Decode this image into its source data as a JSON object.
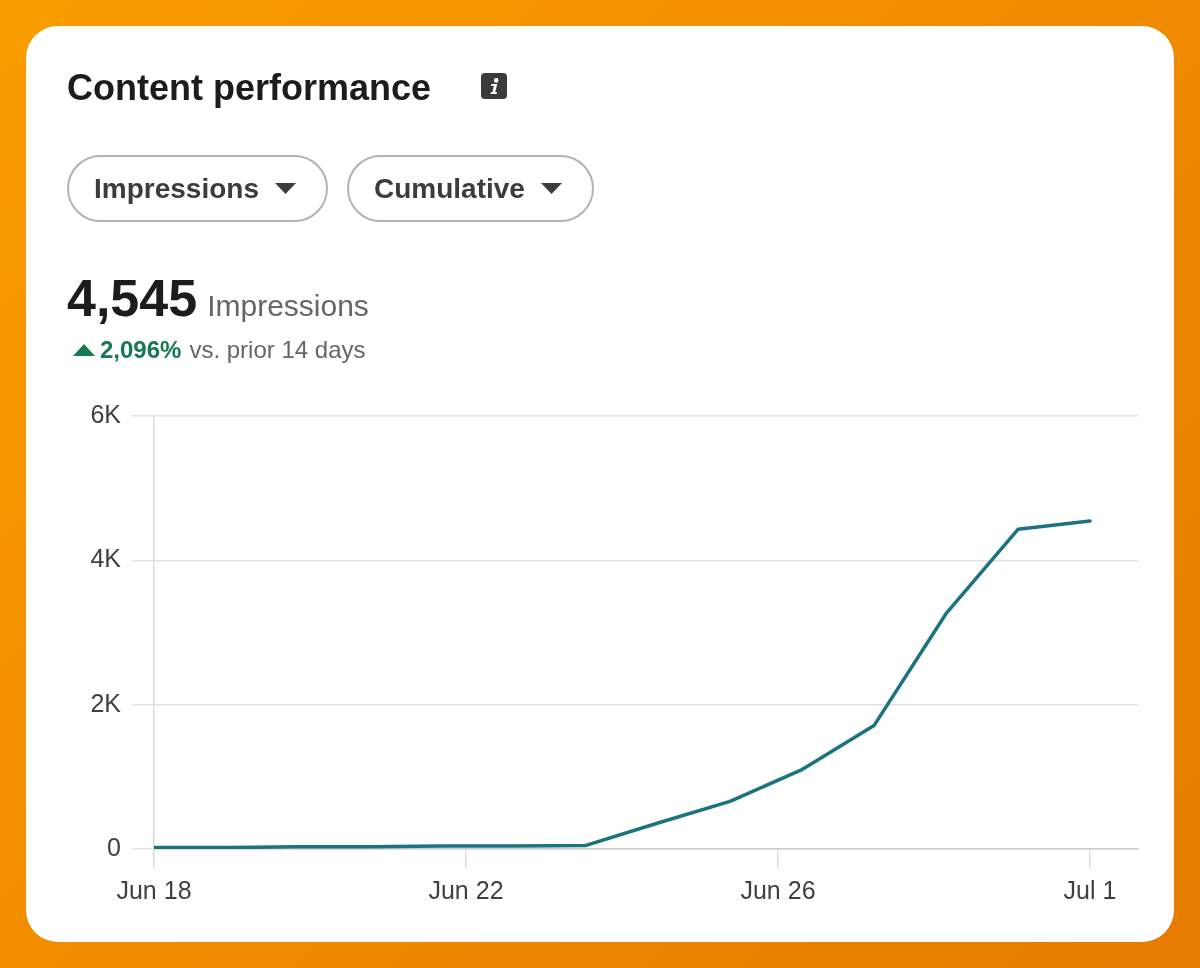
{
  "chart_data": {
    "type": "line",
    "title": "Content performance",
    "annotations": [
      "Impressions",
      "Cumulative",
      "4,545",
      "Impressions",
      "2,096%",
      "vs. prior 14 days"
    ],
    "x": [
      "--06-18",
      "--06-19",
      "--06-20",
      "--06-21",
      "--06-22",
      "--06-23",
      "--06-24",
      "--06-25",
      "--06-26",
      "--06-27",
      "--06-28",
      "--06-29",
      "--06-30",
      "--07-01"
    ],
    "values": [
      20,
      20,
      30,
      30,
      40,
      40,
      50,
      360,
      660,
      1100,
      1710,
      3260,
      4430,
      4545
    ],
    "color": "#1b7380",
    "xlim": [
      "--06-18",
      "--07-01T16:00"
    ],
    "xticks": [
      {
        "value": "--06-18",
        "label": "Jun 18"
      },
      {
        "value": "--06-22T08:00",
        "label": "Jun 22"
      },
      {
        "value": "--06-26T16:00",
        "label": "Jun 26"
      },
      {
        "value": "--07-01",
        "label": "Jul 1"
      }
    ],
    "ylim": [
      0,
      6000
    ],
    "yticks": [
      0,
      {
        "value": 2000,
        "label": "2K"
      },
      {
        "value": 4000,
        "label": "4K"
      },
      {
        "value": 6000,
        "label": "6K"
      }
    ],
    "grid": "y",
    "marker": "none"
  }
}
